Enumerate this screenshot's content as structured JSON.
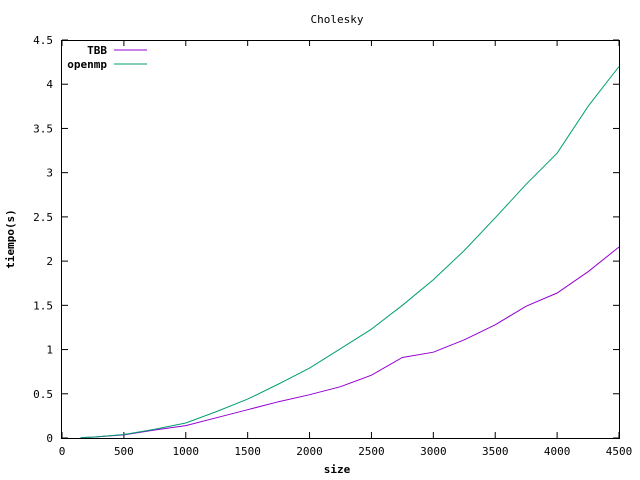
{
  "chart_data": {
    "type": "line",
    "title": "Cholesky",
    "xlabel": "size",
    "ylabel": "tiempo(s)",
    "xlim": [
      0,
      4500
    ],
    "ylim": [
      0,
      4.5
    ],
    "xticks": [
      0,
      500,
      1000,
      1500,
      2000,
      2500,
      3000,
      3500,
      4000,
      4500
    ],
    "xtick_labels": [
      "0",
      "500",
      "1000",
      "1500",
      "2000",
      "2500",
      "3000",
      "3500",
      "4000",
      "4500"
    ],
    "yticks": [
      0,
      0.5,
      1,
      1.5,
      2,
      2.5,
      3,
      3.5,
      4,
      4.5
    ],
    "ytick_labels": [
      "0",
      "0.5",
      "1",
      "1.5",
      "2",
      "2.5",
      "3",
      "3.5",
      "4",
      "4.5"
    ],
    "grid": false,
    "legend": "top-left",
    "series": [
      {
        "name": "TBB",
        "color": "#9400d3",
        "x": [
          150,
          250,
          500,
          750,
          1000,
          1250,
          1500,
          1750,
          2000,
          2250,
          2500,
          2750,
          3000,
          3250,
          3500,
          3750,
          4000,
          4250,
          4500
        ],
        "y": [
          0.005,
          0.01,
          0.035,
          0.09,
          0.14,
          0.23,
          0.32,
          0.41,
          0.49,
          0.58,
          0.71,
          0.91,
          0.97,
          1.11,
          1.28,
          1.49,
          1.64,
          1.88,
          2.16
        ]
      },
      {
        "name": "openmp",
        "color": "#009e73",
        "x": [
          150,
          250,
          500,
          750,
          1000,
          1250,
          1500,
          1750,
          2000,
          2250,
          2500,
          2750,
          3000,
          3250,
          3500,
          3750,
          4000,
          4250,
          4500
        ],
        "y": [
          0.005,
          0.01,
          0.04,
          0.1,
          0.17,
          0.3,
          0.44,
          0.61,
          0.79,
          1.01,
          1.23,
          1.5,
          1.79,
          2.12,
          2.49,
          2.87,
          3.22,
          3.75,
          4.2
        ]
      }
    ]
  }
}
